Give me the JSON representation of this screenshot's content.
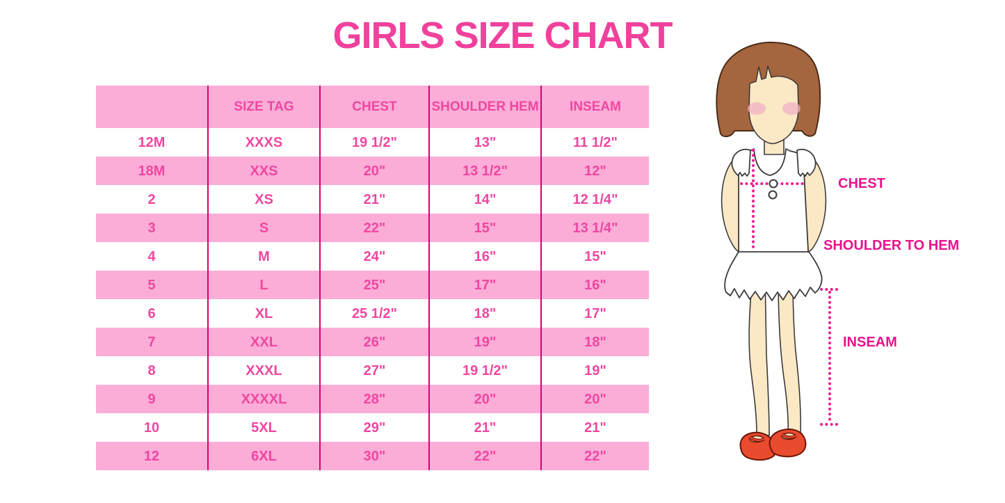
{
  "page": {
    "title": "GIRLS SIZE CHART"
  },
  "colors": {
    "title_pink": "#F0419C",
    "band_pink": "#FBADD8",
    "cell_text_pink": "#EE47A0",
    "divider_magenta": "#D6006E",
    "label_magenta": "#E9118C",
    "dotted_line_pink": "#EC1E8F",
    "hair_brown": "#A5653E",
    "skin": "#FBE9C5",
    "blush": "#F2B0C3",
    "shoe_red": "#E94B2E"
  },
  "chart_data": {
    "type": "table",
    "title": "GIRLS SIZE CHART",
    "columns": [
      "",
      "SIZE TAG",
      "CHEST",
      "SHOULDER HEM",
      "INSEAM"
    ],
    "rows": [
      [
        "12M",
        "XXXS",
        "19 1/2\"",
        "13\"",
        "11 1/2\""
      ],
      [
        "18M",
        "XXS",
        "20\"",
        "13 1/2\"",
        "12\""
      ],
      [
        "2",
        "XS",
        "21\"",
        "14\"",
        "12 1/4\""
      ],
      [
        "3",
        "S",
        "22\"",
        "15\"",
        "13 1/4\""
      ],
      [
        "4",
        "M",
        "24\"",
        "16\"",
        "15\""
      ],
      [
        "5",
        "L",
        "25\"",
        "17\"",
        "16\""
      ],
      [
        "6",
        "XL",
        "25 1/2\"",
        "18\"",
        "17\""
      ],
      [
        "7",
        "XXL",
        "26\"",
        "19\"",
        "18\""
      ],
      [
        "8",
        "XXXL",
        "27\"",
        "19 1/2\"",
        "19\""
      ],
      [
        "9",
        "XXXXL",
        "28\"",
        "20\"",
        "20\""
      ],
      [
        "10",
        "5XL",
        "29\"",
        "21\"",
        "21\""
      ],
      [
        "12",
        "6XL",
        "30\"",
        "22\"",
        "22\""
      ]
    ],
    "row_stripe_pattern": "white rows alternate with pink bands; header band pink",
    "legend_position": "none",
    "grid": "vertical magenta column dividers only"
  },
  "diagram": {
    "chest_label": "CHEST",
    "shoulder_to_hem_label": "SHOULDER TO HEM",
    "inseam_label": "INSEAM"
  }
}
